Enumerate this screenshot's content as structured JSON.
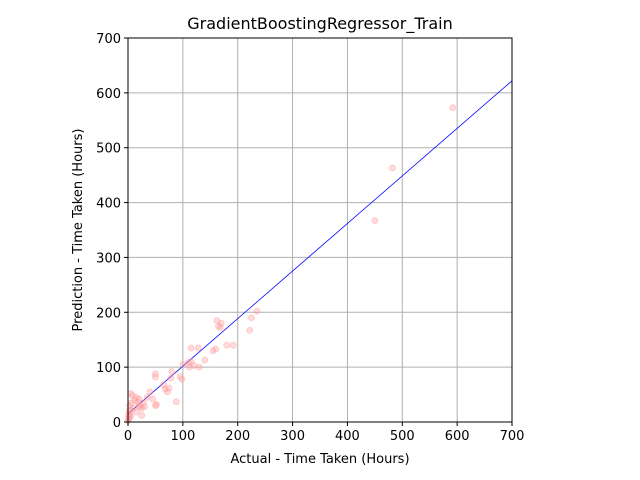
{
  "chart_data": {
    "type": "scatter",
    "title": "GradientBoostingRegressor_Train",
    "xlabel": "Actual - Time Taken (Hours)",
    "ylabel": "Prediction - Time Taken (Hours)",
    "xlim": [
      0,
      700
    ],
    "ylim": [
      0,
      700
    ],
    "xticks": [
      "0",
      "100",
      "200",
      "300",
      "400",
      "500",
      "600",
      "700"
    ],
    "yticks": [
      "0",
      "100",
      "200",
      "300",
      "400",
      "500",
      "600",
      "700"
    ],
    "grid": true,
    "point_color": "#ff9999",
    "point_opacity": 0.35,
    "line_color": "#0000ff",
    "reference_line": {
      "x": [
        0,
        700
      ],
      "y": [
        15,
        622
      ]
    },
    "points": [
      [
        0,
        2
      ],
      [
        1,
        5
      ],
      [
        2,
        8
      ],
      [
        1,
        12
      ],
      [
        3,
        15
      ],
      [
        2,
        20
      ],
      [
        4,
        22
      ],
      [
        5,
        10
      ],
      [
        3,
        30
      ],
      [
        6,
        35
      ],
      [
        8,
        48
      ],
      [
        5,
        52
      ],
      [
        10,
        25
      ],
      [
        12,
        40
      ],
      [
        15,
        18
      ],
      [
        15,
        45
      ],
      [
        18,
        36
      ],
      [
        20,
        30
      ],
      [
        22,
        28
      ],
      [
        20,
        42
      ],
      [
        25,
        25
      ],
      [
        25,
        12
      ],
      [
        28,
        35
      ],
      [
        30,
        28
      ],
      [
        35,
        45
      ],
      [
        40,
        55
      ],
      [
        45,
        42
      ],
      [
        50,
        30
      ],
      [
        52,
        32
      ],
      [
        50,
        82
      ],
      [
        50,
        88
      ],
      [
        65,
        68
      ],
      [
        68,
        60
      ],
      [
        72,
        55
      ],
      [
        75,
        62
      ],
      [
        78,
        80
      ],
      [
        80,
        92
      ],
      [
        88,
        37
      ],
      [
        95,
        83
      ],
      [
        98,
        78
      ],
      [
        100,
        105
      ],
      [
        110,
        108
      ],
      [
        112,
        100
      ],
      [
        115,
        110
      ],
      [
        115,
        135
      ],
      [
        120,
        103
      ],
      [
        128,
        135
      ],
      [
        130,
        100
      ],
      [
        140,
        113
      ],
      [
        155,
        130
      ],
      [
        160,
        133
      ],
      [
        162,
        185
      ],
      [
        165,
        175
      ],
      [
        168,
        172
      ],
      [
        170,
        180
      ],
      [
        180,
        140
      ],
      [
        192,
        140
      ],
      [
        222,
        167
      ],
      [
        225,
        190
      ],
      [
        235,
        202
      ],
      [
        450,
        367
      ],
      [
        482,
        463
      ],
      [
        592,
        573
      ]
    ]
  }
}
